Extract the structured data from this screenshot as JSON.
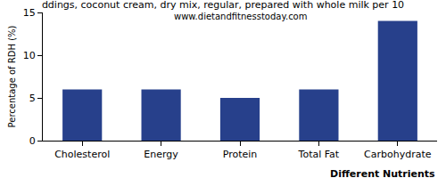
{
  "chart_data": {
    "type": "bar",
    "title": "ddings, coconut cream, dry mix, regular, prepared with whole milk per 10",
    "subtitle": "www.dietandfitnesstoday.com",
    "x_label": "Different Nutrients",
    "y_label": "Percentage of RDH (%)",
    "categories": [
      "Cholesterol",
      "Energy",
      "Protein",
      "Total Fat",
      "Carbohydrate"
    ],
    "values": [
      6,
      6,
      5,
      6,
      14
    ],
    "color": "#27408b",
    "ylim": [
      0,
      15
    ],
    "yticks": [
      0,
      5,
      10,
      15
    ],
    "grid": false
  }
}
